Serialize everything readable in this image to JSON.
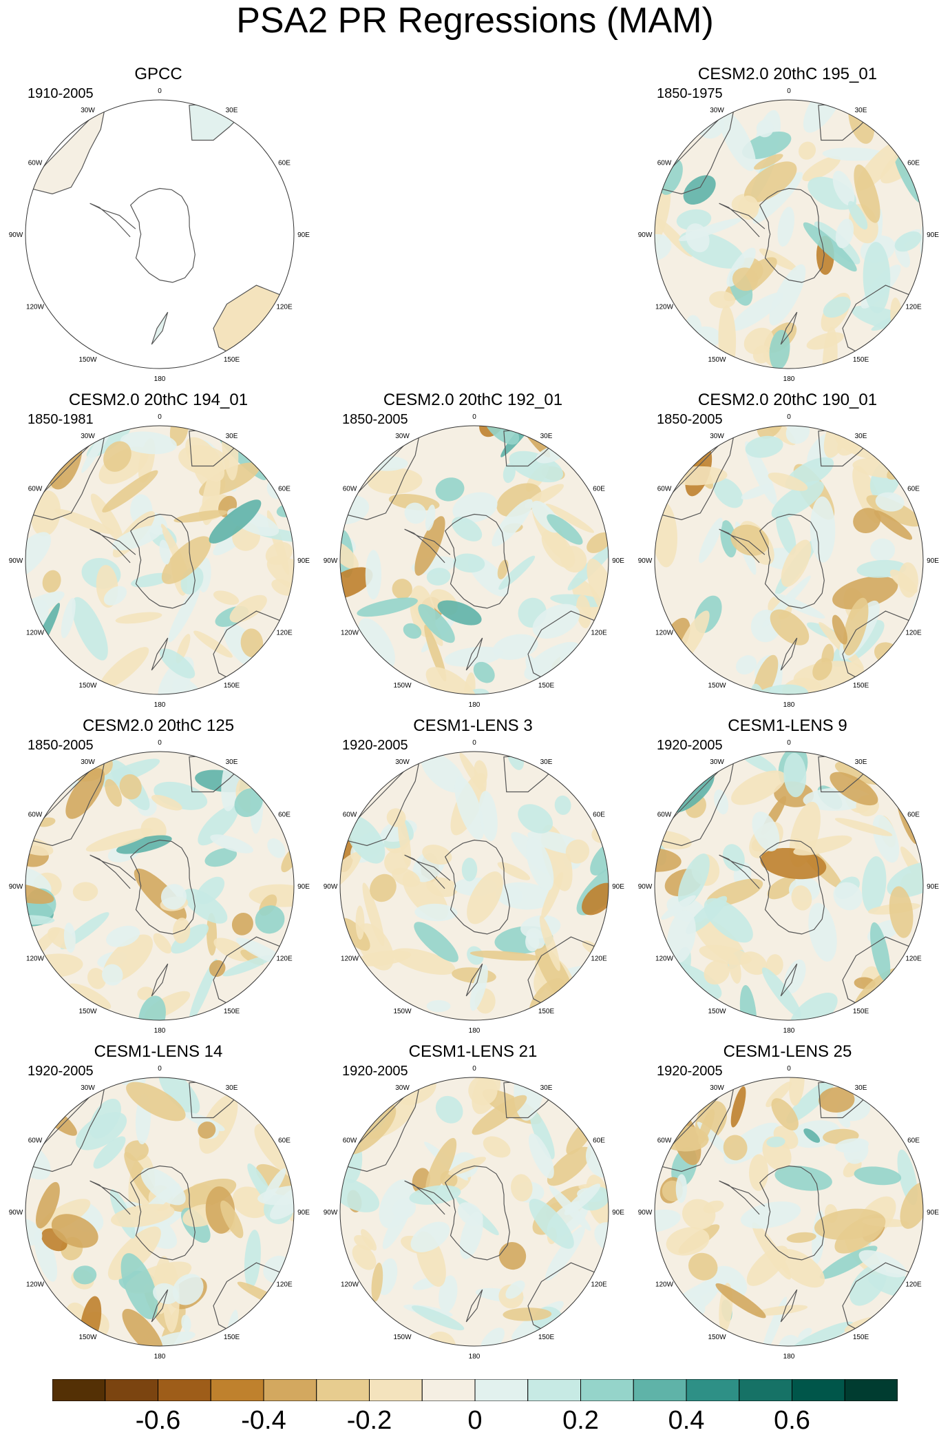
{
  "title": "PSA2 PR Regressions (MAM)",
  "colors": {
    "palette": [
      "#543005",
      "#7b4410",
      "#9e5d19",
      "#bf812d",
      "#d3a85f",
      "#e7cc8f",
      "#f4e3bd",
      "#f5efe3",
      "#e2f1ee",
      "#c7eae4",
      "#95d4ca",
      "#5fb3a8",
      "#2e9086",
      "#167266",
      "#00564a",
      "#003c30"
    ],
    "coastline": "#555555",
    "circle": "#333333",
    "missing": "#ffffff"
  },
  "chart_data": [
    {
      "type": "heatmap",
      "title": "GPCC",
      "period": "1910-2005",
      "coverage": "land-only",
      "field_seed": 1
    },
    {
      "type": "heatmap",
      "title": "CESM2.0 20thC 195_01",
      "period": "1850-1975",
      "field_seed": 2
    },
    {
      "type": "heatmap",
      "title": "CESM2.0 20thC 194_01",
      "period": "1850-1981",
      "field_seed": 3
    },
    {
      "type": "heatmap",
      "title": "CESM2.0 20thC 192_01",
      "period": "1850-2005",
      "field_seed": 4
    },
    {
      "type": "heatmap",
      "title": "CESM2.0 20thC 190_01",
      "period": "1850-2005",
      "field_seed": 5
    },
    {
      "type": "heatmap",
      "title": "CESM2.0 20thC 125",
      "period": "1850-2005",
      "field_seed": 6
    },
    {
      "type": "heatmap",
      "title": "CESM1-LENS 3",
      "period": "1920-2005",
      "field_seed": 7
    },
    {
      "type": "heatmap",
      "title": "CESM1-LENS 9",
      "period": "1920-2005",
      "field_seed": 8
    },
    {
      "type": "heatmap",
      "title": "CESM1-LENS 14",
      "period": "1920-2005",
      "field_seed": 9
    },
    {
      "type": "heatmap",
      "title": "CESM1-LENS 21",
      "period": "1920-2005",
      "field_seed": 10
    },
    {
      "type": "heatmap",
      "title": "CESM1-LENS 25",
      "period": "1920-2005",
      "field_seed": 11
    }
  ],
  "map_labels": [
    "0",
    "30E",
    "60E",
    "90E",
    "120E",
    "150E",
    "180",
    "150W",
    "120W",
    "90W",
    "60W",
    "30W"
  ],
  "colorbar": {
    "ticks": [
      "-0.6",
      "-0.4",
      "-0.2",
      "0",
      "0.2",
      "0.4",
      "0.6"
    ],
    "tick_values": [
      -0.6,
      -0.4,
      -0.2,
      0,
      0.2,
      0.4,
      0.6
    ],
    "range": [
      -0.8,
      0.8
    ],
    "step": 0.1
  }
}
